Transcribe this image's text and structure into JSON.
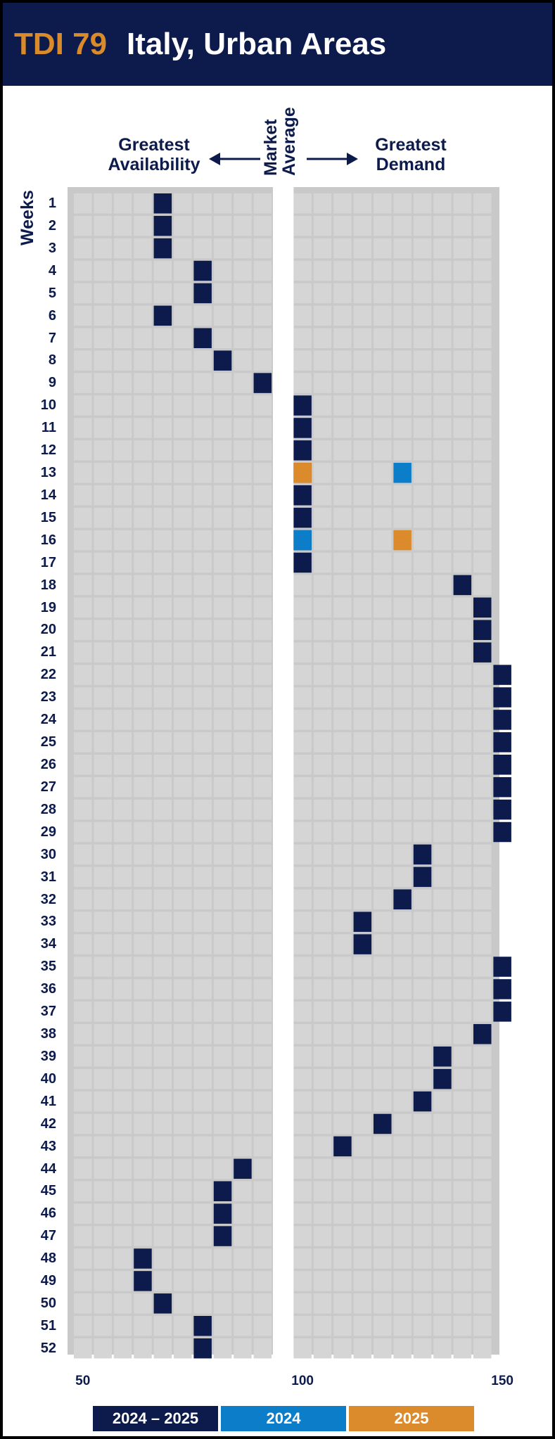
{
  "header": {
    "code": "TDI 79",
    "title": "Italy, Urban Areas"
  },
  "labels": {
    "left": [
      "Greatest",
      "Availability"
    ],
    "center": [
      "Market",
      "Average"
    ],
    "right": [
      "Greatest",
      "Demand"
    ],
    "weeks_axis": "Weeks"
  },
  "colors": {
    "header_bg": "#0d1b4c",
    "accent": "#d98a2b",
    "series_2024_2025": "#0d1b4c",
    "series_2024": "#0b7dc9",
    "series_2025": "#db8a2c",
    "cell": "#d5d5d5",
    "panel": "#c9c9c9"
  },
  "chart_data": {
    "type": "heatmap",
    "x_ticks": [
      "50",
      "100",
      "150"
    ],
    "xlim": [
      50,
      150
    ],
    "ylabel": "Weeks",
    "weeks": [
      "1",
      "2",
      "3",
      "4",
      "5",
      "6",
      "7",
      "8",
      "9",
      "10",
      "11",
      "12",
      "13",
      "14",
      "15",
      "16",
      "17",
      "18",
      "19",
      "20",
      "21",
      "22",
      "23",
      "24",
      "25",
      "26",
      "27",
      "28",
      "29",
      "30",
      "31",
      "32",
      "33",
      "34",
      "35",
      "36",
      "37",
      "38",
      "39",
      "40",
      "41",
      "42",
      "43",
      "44",
      "45",
      "46",
      "47",
      "48",
      "49",
      "50",
      "51",
      "52"
    ],
    "legend": [
      "2024 – 2025",
      "2024",
      "2025"
    ],
    "series": [
      {
        "name": "2024 – 2025",
        "values": [
          70,
          70,
          70,
          80,
          80,
          70,
          80,
          85,
          95,
          100,
          100,
          100,
          100,
          100,
          100,
          100,
          100,
          140,
          145,
          145,
          145,
          150,
          150,
          150,
          150,
          150,
          150,
          150,
          150,
          130,
          130,
          125,
          115,
          115,
          150,
          150,
          150,
          145,
          135,
          135,
          130,
          120,
          110,
          90,
          85,
          85,
          85,
          65,
          65,
          70,
          80,
          80
        ]
      },
      {
        "name": "2024",
        "weeks": [
          13,
          16
        ],
        "values": [
          125,
          100
        ]
      },
      {
        "name": "2025",
        "weeks": [
          13,
          16
        ],
        "values": [
          100,
          125
        ]
      }
    ]
  }
}
